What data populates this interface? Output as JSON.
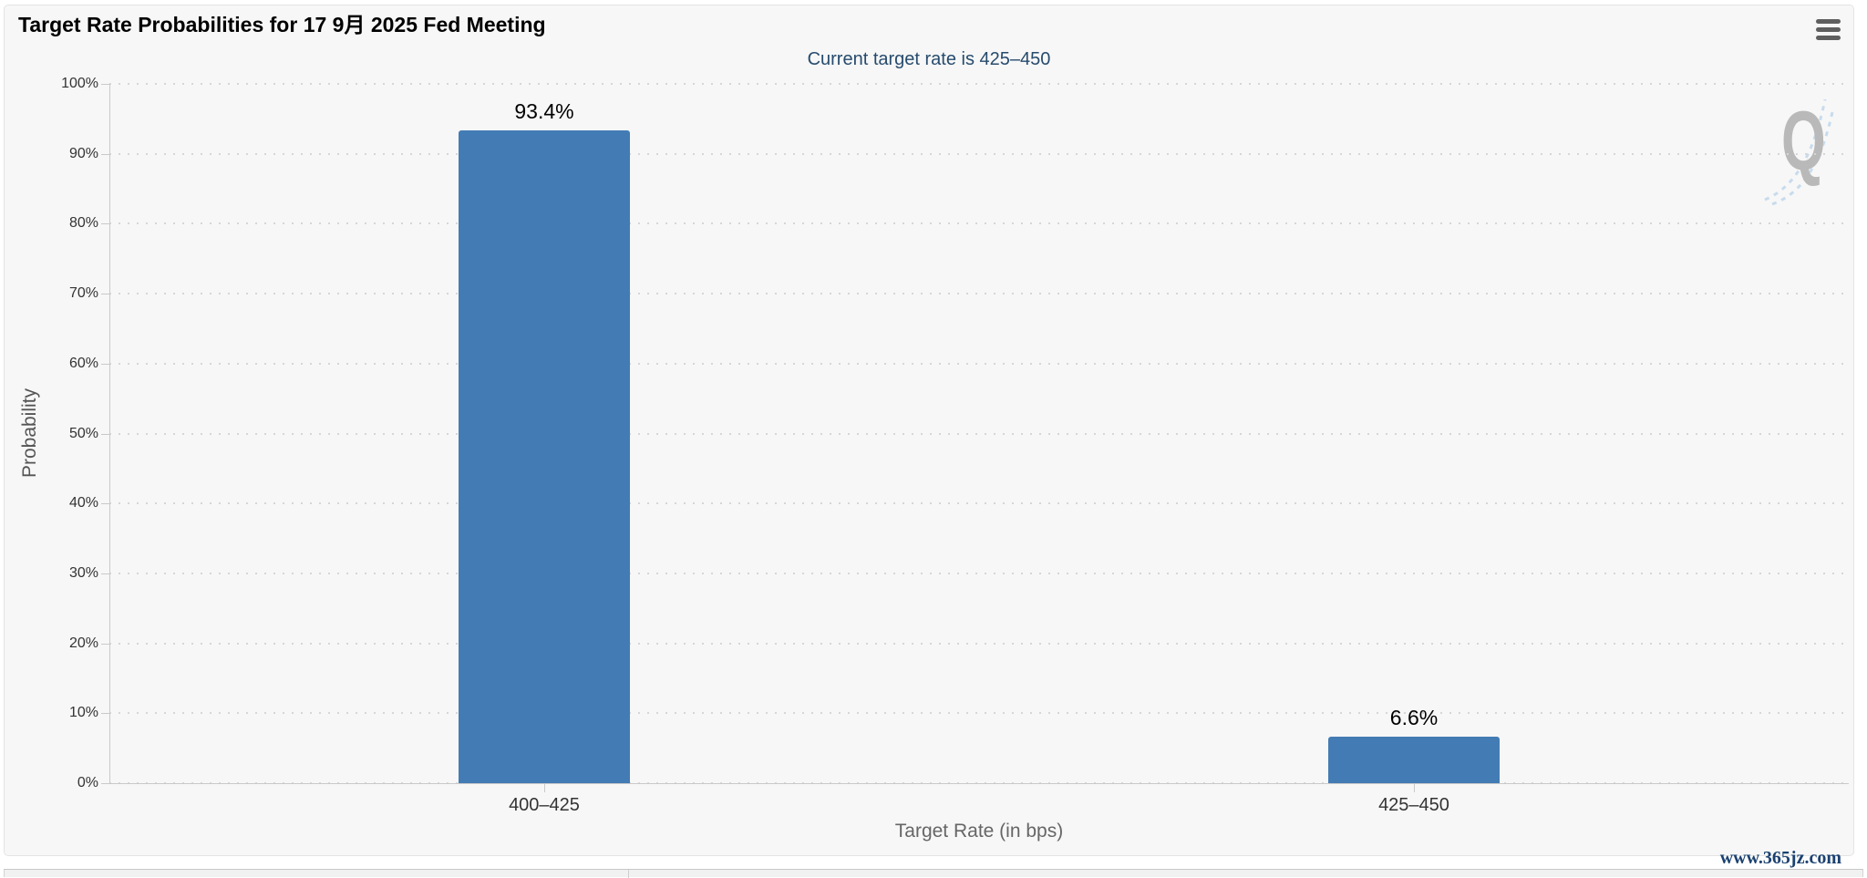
{
  "page": {
    "site_watermark": "www.365jz.com"
  },
  "chart": {
    "title": "Target Rate Probabilities for 17 9月 2025 Fed Meeting",
    "subtitle": "Current target rate is 425–450",
    "context_menu_icon": "hamburger-menu-icon",
    "logo_watermark_letter": "Q"
  },
  "chart_data": {
    "type": "bar",
    "title": "Target Rate Probabilities for 17 9月 2025 Fed Meeting",
    "subtitle": "Current target rate is 425–450",
    "categories": [
      "400–425",
      "425–450"
    ],
    "values": [
      93.4,
      6.6
    ],
    "value_labels": [
      "93.4%",
      "6.6%"
    ],
    "xlabel": "Target Rate (in bps)",
    "ylabel": "Probability",
    "ylim": [
      0,
      100
    ],
    "ytick_step": 10,
    "ytick_labels": [
      "0%",
      "10%",
      "20%",
      "30%",
      "40%",
      "50%",
      "60%",
      "70%",
      "80%",
      "90%",
      "100%"
    ],
    "grid": "horizontal-dotted",
    "legend": "none",
    "bar_color": "#437cb4",
    "label_color": "#000000",
    "subtitle_color": "#274b6d",
    "axis_color": "#c9c9c9",
    "grid_color": "#d6d6d6"
  }
}
